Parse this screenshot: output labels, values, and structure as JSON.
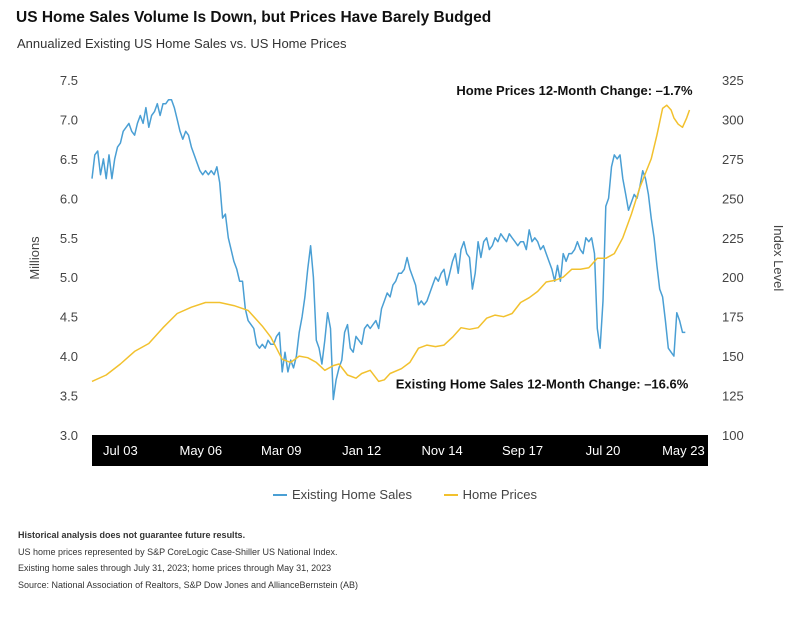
{
  "title": "US Home Sales Volume Is Down, but Prices Have Barely Budged",
  "subtitle": "Annualized Existing US Home Sales vs. US Home Prices",
  "legend": {
    "sales": "Existing Home Sales",
    "prices": "Home Prices"
  },
  "footnotes": [
    "Historical analysis does not guarantee future results.",
    "US home prices represented by S&P CoreLogic Case-Shiller US National Index.",
    "Existing home sales through July 31, 2023; home prices through May 31, 2023",
    "Source: National Association of Realtors, S&P Dow Jones and AllianceBernstein (AB)"
  ],
  "chart_data": {
    "type": "line",
    "title": "US Home Sales Volume Is Down, but Prices Have Barely Budged",
    "subtitle": "Annualized Existing US Home Sales vs. US Home Prices",
    "xlabel": "",
    "ylabel_left": "Millions",
    "ylabel_right": "Index Level",
    "x_ticks": [
      "Jul 03",
      "May 06",
      "Mar 09",
      "Jan 12",
      "Nov 14",
      "Sep 17",
      "Jul 20",
      "May 23"
    ],
    "x_tick_values": [
      2003.5,
      2006.333,
      2009.167,
      2012.0,
      2014.833,
      2017.667,
      2020.5,
      2023.333
    ],
    "xlim": [
      2002.5,
      2024.2
    ],
    "ylim_left": [
      3.0,
      7.5
    ],
    "y_ticks_left": [
      "3.0",
      "3.5",
      "4.0",
      "4.5",
      "5.0",
      "5.5",
      "6.0",
      "6.5",
      "7.0",
      "7.5"
    ],
    "ylim_right": [
      100,
      325
    ],
    "y_ticks_right": [
      "100",
      "125",
      "150",
      "175",
      "200",
      "225",
      "250",
      "275",
      "300",
      "325"
    ],
    "grid": false,
    "legend_position": "bottom",
    "annotations": [
      {
        "text": "Home Prices 12-Month Change: –1.7%",
        "anchor": "prices_end"
      },
      {
        "text": "Existing Home Sales 12-Month Change: –16.6%",
        "anchor": "sales_end"
      }
    ],
    "series": [
      {
        "name": "Existing Home Sales",
        "axis": "left",
        "color": "#4a9fd4",
        "points": [
          [
            2002.5,
            6.25
          ],
          [
            2002.6,
            6.55
          ],
          [
            2002.7,
            6.6
          ],
          [
            2002.8,
            6.3
          ],
          [
            2002.9,
            6.5
          ],
          [
            2003.0,
            6.25
          ],
          [
            2003.1,
            6.55
          ],
          [
            2003.2,
            6.25
          ],
          [
            2003.3,
            6.5
          ],
          [
            2003.4,
            6.65
          ],
          [
            2003.5,
            6.7
          ],
          [
            2003.6,
            6.85
          ],
          [
            2003.7,
            6.9
          ],
          [
            2003.8,
            6.95
          ],
          [
            2003.9,
            6.85
          ],
          [
            2004.0,
            6.8
          ],
          [
            2004.1,
            6.95
          ],
          [
            2004.2,
            7.05
          ],
          [
            2004.3,
            6.95
          ],
          [
            2004.4,
            7.15
          ],
          [
            2004.5,
            6.9
          ],
          [
            2004.6,
            7.05
          ],
          [
            2004.7,
            7.1
          ],
          [
            2004.8,
            7.2
          ],
          [
            2004.9,
            7.05
          ],
          [
            2005.0,
            7.2
          ],
          [
            2005.1,
            7.2
          ],
          [
            2005.2,
            7.25
          ],
          [
            2005.3,
            7.25
          ],
          [
            2005.4,
            7.15
          ],
          [
            2005.5,
            7.0
          ],
          [
            2005.6,
            6.85
          ],
          [
            2005.7,
            6.75
          ],
          [
            2005.8,
            6.85
          ],
          [
            2005.9,
            6.8
          ],
          [
            2006.0,
            6.65
          ],
          [
            2006.1,
            6.55
          ],
          [
            2006.2,
            6.45
          ],
          [
            2006.3,
            6.35
          ],
          [
            2006.4,
            6.3
          ],
          [
            2006.5,
            6.35
          ],
          [
            2006.6,
            6.3
          ],
          [
            2006.7,
            6.35
          ],
          [
            2006.8,
            6.3
          ],
          [
            2006.9,
            6.4
          ],
          [
            2007.0,
            6.2
          ],
          [
            2007.1,
            5.75
          ],
          [
            2007.2,
            5.8
          ],
          [
            2007.3,
            5.5
          ],
          [
            2007.4,
            5.35
          ],
          [
            2007.5,
            5.2
          ],
          [
            2007.6,
            5.1
          ],
          [
            2007.7,
            4.95
          ],
          [
            2007.8,
            4.95
          ],
          [
            2007.9,
            4.6
          ],
          [
            2008.0,
            4.45
          ],
          [
            2008.1,
            4.4
          ],
          [
            2008.2,
            4.35
          ],
          [
            2008.3,
            4.15
          ],
          [
            2008.4,
            4.1
          ],
          [
            2008.5,
            4.15
          ],
          [
            2008.6,
            4.1
          ],
          [
            2008.7,
            4.2
          ],
          [
            2008.8,
            4.15
          ],
          [
            2008.9,
            4.15
          ],
          [
            2009.0,
            4.25
          ],
          [
            2009.1,
            4.3
          ],
          [
            2009.2,
            3.8
          ],
          [
            2009.3,
            4.05
          ],
          [
            2009.4,
            3.8
          ],
          [
            2009.5,
            3.95
          ],
          [
            2009.6,
            3.85
          ],
          [
            2009.7,
            4.0
          ],
          [
            2009.8,
            4.3
          ],
          [
            2009.9,
            4.5
          ],
          [
            2010.0,
            4.75
          ],
          [
            2010.1,
            5.1
          ],
          [
            2010.2,
            5.4
          ],
          [
            2010.3,
            5.0
          ],
          [
            2010.4,
            4.2
          ],
          [
            2010.5,
            4.1
          ],
          [
            2010.6,
            3.9
          ],
          [
            2010.7,
            4.2
          ],
          [
            2010.8,
            4.55
          ],
          [
            2010.9,
            4.35
          ],
          [
            2011.0,
            3.45
          ],
          [
            2011.1,
            3.7
          ],
          [
            2011.2,
            3.85
          ],
          [
            2011.3,
            3.95
          ],
          [
            2011.4,
            4.3
          ],
          [
            2011.5,
            4.4
          ],
          [
            2011.6,
            4.1
          ],
          [
            2011.7,
            4.05
          ],
          [
            2011.8,
            4.25
          ],
          [
            2011.9,
            4.2
          ],
          [
            2012.0,
            4.15
          ],
          [
            2012.1,
            4.35
          ],
          [
            2012.2,
            4.4
          ],
          [
            2012.3,
            4.35
          ],
          [
            2012.4,
            4.4
          ],
          [
            2012.5,
            4.45
          ],
          [
            2012.6,
            4.35
          ],
          [
            2012.7,
            4.6
          ],
          [
            2012.8,
            4.7
          ],
          [
            2012.9,
            4.8
          ],
          [
            2013.0,
            4.75
          ],
          [
            2013.1,
            4.9
          ],
          [
            2013.2,
            4.95
          ],
          [
            2013.3,
            5.05
          ],
          [
            2013.4,
            5.05
          ],
          [
            2013.5,
            5.1
          ],
          [
            2013.6,
            5.25
          ],
          [
            2013.7,
            5.1
          ],
          [
            2013.8,
            5.0
          ],
          [
            2013.9,
            4.9
          ],
          [
            2014.0,
            4.65
          ],
          [
            2014.1,
            4.7
          ],
          [
            2014.2,
            4.65
          ],
          [
            2014.3,
            4.7
          ],
          [
            2014.4,
            4.8
          ],
          [
            2014.5,
            4.9
          ],
          [
            2014.6,
            5.0
          ],
          [
            2014.7,
            4.95
          ],
          [
            2014.8,
            5.05
          ],
          [
            2014.9,
            5.1
          ],
          [
            2015.0,
            4.9
          ],
          [
            2015.1,
            5.05
          ],
          [
            2015.2,
            5.2
          ],
          [
            2015.3,
            5.3
          ],
          [
            2015.4,
            5.05
          ],
          [
            2015.5,
            5.35
          ],
          [
            2015.6,
            5.45
          ],
          [
            2015.7,
            5.3
          ],
          [
            2015.8,
            5.25
          ],
          [
            2015.9,
            4.85
          ],
          [
            2016.0,
            5.05
          ],
          [
            2016.1,
            5.45
          ],
          [
            2016.2,
            5.25
          ],
          [
            2016.3,
            5.45
          ],
          [
            2016.4,
            5.5
          ],
          [
            2016.5,
            5.35
          ],
          [
            2016.6,
            5.4
          ],
          [
            2016.7,
            5.5
          ],
          [
            2016.8,
            5.45
          ],
          [
            2016.9,
            5.55
          ],
          [
            2017.0,
            5.5
          ],
          [
            2017.1,
            5.45
          ],
          [
            2017.2,
            5.55
          ],
          [
            2017.3,
            5.5
          ],
          [
            2017.4,
            5.45
          ],
          [
            2017.5,
            5.4
          ],
          [
            2017.6,
            5.45
          ],
          [
            2017.7,
            5.45
          ],
          [
            2017.8,
            5.35
          ],
          [
            2017.9,
            5.6
          ],
          [
            2018.0,
            5.45
          ],
          [
            2018.1,
            5.5
          ],
          [
            2018.2,
            5.45
          ],
          [
            2018.3,
            5.35
          ],
          [
            2018.4,
            5.4
          ],
          [
            2018.5,
            5.3
          ],
          [
            2018.6,
            5.2
          ],
          [
            2018.7,
            5.1
          ],
          [
            2018.8,
            4.95
          ],
          [
            2018.9,
            5.15
          ],
          [
            2019.0,
            4.95
          ],
          [
            2019.1,
            5.3
          ],
          [
            2019.2,
            5.2
          ],
          [
            2019.3,
            5.3
          ],
          [
            2019.4,
            5.3
          ],
          [
            2019.5,
            5.35
          ],
          [
            2019.6,
            5.45
          ],
          [
            2019.7,
            5.35
          ],
          [
            2019.8,
            5.3
          ],
          [
            2019.9,
            5.5
          ],
          [
            2020.0,
            5.45
          ],
          [
            2020.1,
            5.5
          ],
          [
            2020.2,
            5.3
          ],
          [
            2020.3,
            4.35
          ],
          [
            2020.4,
            4.1
          ],
          [
            2020.5,
            4.7
          ],
          [
            2020.6,
            5.9
          ],
          [
            2020.7,
            6.0
          ],
          [
            2020.8,
            6.4
          ],
          [
            2020.9,
            6.55
          ],
          [
            2021.0,
            6.5
          ],
          [
            2021.1,
            6.55
          ],
          [
            2021.2,
            6.25
          ],
          [
            2021.3,
            6.05
          ],
          [
            2021.4,
            5.85
          ],
          [
            2021.5,
            5.95
          ],
          [
            2021.6,
            6.05
          ],
          [
            2021.7,
            6.0
          ],
          [
            2021.8,
            6.15
          ],
          [
            2021.9,
            6.35
          ],
          [
            2022.0,
            6.25
          ],
          [
            2022.1,
            6.05
          ],
          [
            2022.2,
            5.75
          ],
          [
            2022.3,
            5.5
          ],
          [
            2022.4,
            5.15
          ],
          [
            2022.5,
            4.85
          ],
          [
            2022.6,
            4.75
          ],
          [
            2022.7,
            4.45
          ],
          [
            2022.8,
            4.1
          ],
          [
            2022.9,
            4.05
          ],
          [
            2023.0,
            4.0
          ],
          [
            2023.1,
            4.55
          ],
          [
            2023.2,
            4.45
          ],
          [
            2023.3,
            4.3
          ],
          [
            2023.4,
            4.3
          ]
        ]
      },
      {
        "name": "Home Prices",
        "axis": "right",
        "color": "#f2c12e",
        "points": [
          [
            2002.5,
            134
          ],
          [
            2003.0,
            138
          ],
          [
            2003.5,
            145
          ],
          [
            2004.0,
            153
          ],
          [
            2004.5,
            158
          ],
          [
            2005.0,
            168
          ],
          [
            2005.5,
            177
          ],
          [
            2006.0,
            181
          ],
          [
            2006.5,
            184
          ],
          [
            2007.0,
            184
          ],
          [
            2007.5,
            182
          ],
          [
            2008.0,
            179
          ],
          [
            2008.5,
            169
          ],
          [
            2008.8,
            162
          ],
          [
            2009.0,
            155
          ],
          [
            2009.2,
            148
          ],
          [
            2009.5,
            146
          ],
          [
            2009.8,
            150
          ],
          [
            2010.1,
            149
          ],
          [
            2010.4,
            146
          ],
          [
            2010.7,
            141
          ],
          [
            2011.0,
            144
          ],
          [
            2011.2,
            145
          ],
          [
            2011.5,
            138
          ],
          [
            2011.8,
            136
          ],
          [
            2012.0,
            139
          ],
          [
            2012.3,
            141
          ],
          [
            2012.6,
            134
          ],
          [
            2012.8,
            135
          ],
          [
            2013.0,
            139
          ],
          [
            2013.4,
            142
          ],
          [
            2013.7,
            146
          ],
          [
            2014.0,
            155
          ],
          [
            2014.3,
            157
          ],
          [
            2014.6,
            156
          ],
          [
            2014.9,
            157
          ],
          [
            2015.2,
            162
          ],
          [
            2015.5,
            168
          ],
          [
            2015.8,
            167
          ],
          [
            2016.1,
            168
          ],
          [
            2016.4,
            174
          ],
          [
            2016.7,
            176
          ],
          [
            2017.0,
            175
          ],
          [
            2017.3,
            177
          ],
          [
            2017.6,
            184
          ],
          [
            2017.9,
            187
          ],
          [
            2018.2,
            191
          ],
          [
            2018.5,
            197
          ],
          [
            2018.8,
            198
          ],
          [
            2019.1,
            200
          ],
          [
            2019.4,
            205
          ],
          [
            2019.7,
            205
          ],
          [
            2020.0,
            206
          ],
          [
            2020.3,
            212
          ],
          [
            2020.6,
            212
          ],
          [
            2020.9,
            215
          ],
          [
            2021.2,
            225
          ],
          [
            2021.5,
            240
          ],
          [
            2021.8,
            257
          ],
          [
            2022.0,
            266
          ],
          [
            2022.2,
            275
          ],
          [
            2022.4,
            290
          ],
          [
            2022.6,
            307
          ],
          [
            2022.75,
            309
          ],
          [
            2022.9,
            306
          ],
          [
            2023.0,
            301
          ],
          [
            2023.15,
            297
          ],
          [
            2023.3,
            295
          ],
          [
            2023.45,
            301
          ],
          [
            2023.55,
            306
          ]
        ]
      }
    ]
  }
}
